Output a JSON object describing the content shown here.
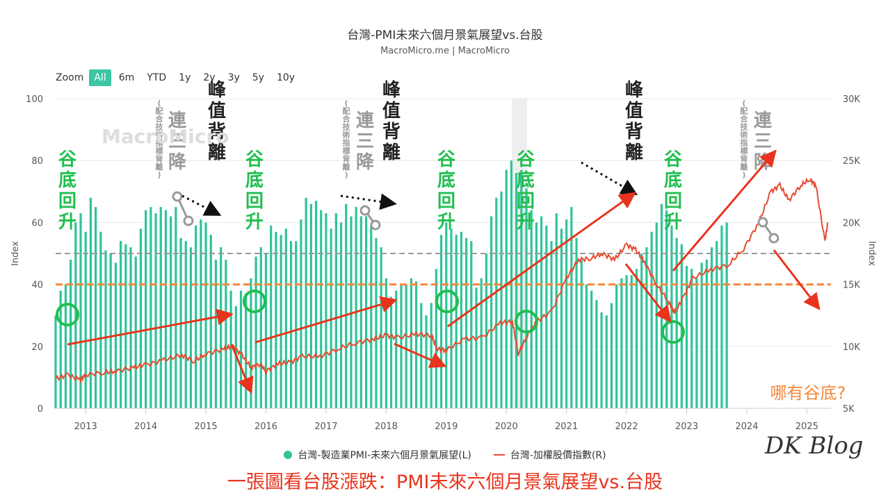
{
  "header": {
    "title": "台灣-PMI未來六個月景氣展望vs.台股",
    "subtitle": "MacroMicro.me | MacroMicro"
  },
  "zoom": {
    "label": "Zoom",
    "buttons": [
      "All",
      "6m",
      "YTD",
      "1y",
      "2y",
      "3y",
      "5y",
      "10y"
    ],
    "active": "All"
  },
  "watermark": "MacroMicro",
  "legend": {
    "pmi": "台灣-製造業PMI-未來六個月景氣展望(L)",
    "taiex": "台灣-加權股價指數(R)"
  },
  "caption": "一張圖看台股漲跌：PMI未來六個月景氣展望vs.台股",
  "signature": "DK Blog",
  "annotations": {
    "trough": "谷底回升",
    "peak": "峰值背離",
    "three_down": "連三降",
    "note": "(配合技術指標背離)",
    "question": "哪有谷底?"
  },
  "colors": {
    "bar": "#2fc39a",
    "line": "#e64a2e",
    "orange": "#f5883a",
    "gray": "#999999",
    "green_text": "#1fbf4e",
    "dark_text": "#222222",
    "accent": "#3cc6a4"
  },
  "chart_data": {
    "type": "bar+line",
    "left_axis": {
      "label": "Index",
      "ticks": [
        "0",
        "20",
        "40",
        "60",
        "80",
        "100"
      ],
      "range": [
        0,
        100
      ]
    },
    "right_axis": {
      "label": "Index",
      "ticks": [
        "5K",
        "10K",
        "15K",
        "20K",
        "25K",
        "30K"
      ],
      "range": [
        5000,
        30000
      ]
    },
    "x_ticks": [
      "2013",
      "2014",
      "2015",
      "2016",
      "2017",
      "2018",
      "2019",
      "2020",
      "2021",
      "2022",
      "2023",
      "2024",
      "2025"
    ],
    "x_range": [
      2012.5,
      2025.4
    ],
    "reference_lines": [
      {
        "axis": "left",
        "value": 50,
        "style": "gray-dashed"
      },
      {
        "axis": "left",
        "value": 40,
        "style": "orange-dashed"
      }
    ],
    "pmi_series": {
      "name": "台灣-製造業PMI-未來六個月景氣展望(L)",
      "start": 2012.5,
      "step_months": 1,
      "values": [
        30,
        38,
        40,
        48,
        60,
        63,
        57,
        68,
        65,
        57,
        51,
        50,
        47,
        54,
        53,
        52,
        49,
        58,
        64,
        65,
        63,
        65,
        64,
        62,
        65,
        55,
        54,
        52,
        59,
        61,
        60,
        56,
        48,
        52,
        48,
        38,
        33,
        38,
        37,
        42,
        49,
        52,
        50,
        59,
        57,
        56,
        58,
        54,
        54,
        61,
        68,
        66,
        67,
        64,
        63,
        58,
        63,
        60,
        66,
        62,
        65,
        62,
        62,
        59,
        55,
        52,
        42,
        36,
        38,
        40,
        40,
        42,
        41,
        34,
        30,
        34,
        45,
        56,
        60,
        58,
        56,
        57,
        55,
        54,
        39,
        42,
        50,
        62,
        68,
        70,
        77,
        80,
        76,
        77,
        71,
        64,
        60,
        62,
        59,
        54,
        63,
        58,
        61,
        65,
        55,
        48,
        40,
        38,
        35,
        31,
        30,
        34,
        40,
        42,
        43,
        43,
        45,
        50,
        52,
        57,
        60,
        66,
        64,
        59,
        55,
        53,
        46,
        45,
        42,
        47,
        48,
        52,
        54,
        59,
        60
      ]
    },
    "taiex_series": {
      "name": "台灣-加權股價指數(R)",
      "points": [
        [
          2012.5,
          7400
        ],
        [
          2012.7,
          7700
        ],
        [
          2012.9,
          7300
        ],
        [
          2013.0,
          7700
        ],
        [
          2013.3,
          7900
        ],
        [
          2013.5,
          8000
        ],
        [
          2013.8,
          8300
        ],
        [
          2014.0,
          8500
        ],
        [
          2014.3,
          8900
        ],
        [
          2014.6,
          9300
        ],
        [
          2014.8,
          8800
        ],
        [
          2015.0,
          9400
        ],
        [
          2015.3,
          9800
        ],
        [
          2015.45,
          10000
        ],
        [
          2015.6,
          9300
        ],
        [
          2015.75,
          8300
        ],
        [
          2015.9,
          8600
        ],
        [
          2016.0,
          8000
        ],
        [
          2016.2,
          8600
        ],
        [
          2016.4,
          8700
        ],
        [
          2016.6,
          9200
        ],
        [
          2016.9,
          9200
        ],
        [
          2017.2,
          9800
        ],
        [
          2017.5,
          10300
        ],
        [
          2017.8,
          10600
        ],
        [
          2018.0,
          10900
        ],
        [
          2018.2,
          10700
        ],
        [
          2018.5,
          11000
        ],
        [
          2018.75,
          10900
        ],
        [
          2018.85,
          9800
        ],
        [
          2019.0,
          9700
        ],
        [
          2019.3,
          10600
        ],
        [
          2019.6,
          10700
        ],
        [
          2019.9,
          11900
        ],
        [
          2020.1,
          12000
        ],
        [
          2020.2,
          9400
        ],
        [
          2020.35,
          10900
        ],
        [
          2020.5,
          12000
        ],
        [
          2020.75,
          12800
        ],
        [
          2021.0,
          15500
        ],
        [
          2021.2,
          17000
        ],
        [
          2021.4,
          17100
        ],
        [
          2021.6,
          17500
        ],
        [
          2021.8,
          17000
        ],
        [
          2022.0,
          18200
        ],
        [
          2022.15,
          17800
        ],
        [
          2022.3,
          16800
        ],
        [
          2022.5,
          15000
        ],
        [
          2022.7,
          13600
        ],
        [
          2022.8,
          12700
        ],
        [
          2022.95,
          14000
        ],
        [
          2023.1,
          15500
        ],
        [
          2023.4,
          16200
        ],
        [
          2023.7,
          16600
        ],
        [
          2023.95,
          17900
        ],
        [
          2024.2,
          20000
        ],
        [
          2024.4,
          22500
        ],
        [
          2024.55,
          23000
        ],
        [
          2024.7,
          21800
        ],
        [
          2024.9,
          23000
        ],
        [
          2025.05,
          23500
        ],
        [
          2025.15,
          23000
        ],
        [
          2025.3,
          18500
        ],
        [
          2025.35,
          20000
        ]
      ]
    }
  }
}
